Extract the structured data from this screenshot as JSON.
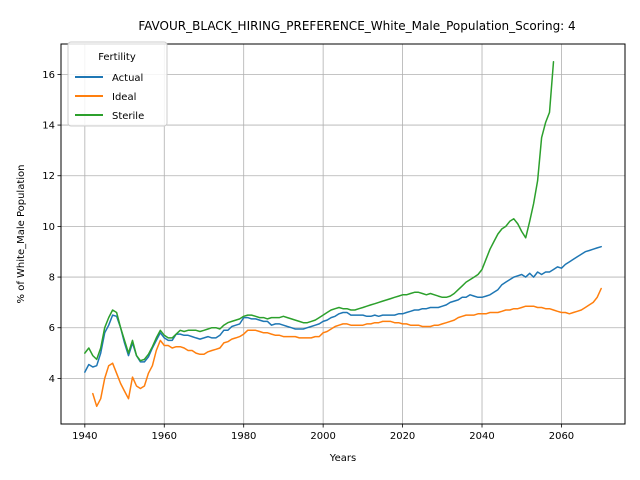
{
  "chart_data": {
    "type": "line",
    "title": "FAVOUR_BLACK_HIRING_PREFERENCE_White_Male_Population_Scoring: 4",
    "xlabel": "Years",
    "ylabel": "% of White_Male Population",
    "xlim": [
      1934,
      2076
    ],
    "ylim": [
      2.2,
      17.2
    ],
    "xticks": [
      1940,
      1960,
      1980,
      2000,
      2020,
      2040,
      2060
    ],
    "yticks": [
      4,
      6,
      8,
      10,
      12,
      14,
      16
    ],
    "grid": true,
    "legend": {
      "title": "Fertility",
      "position": "top-left"
    },
    "series": [
      {
        "name": "Actual",
        "color": "#1f77b4",
        "x": [
          1940,
          1941,
          1942,
          1943,
          1944,
          1945,
          1946,
          1947,
          1948,
          1949,
          1950,
          1951,
          1952,
          1953,
          1954,
          1955,
          1956,
          1957,
          1958,
          1959,
          1960,
          1961,
          1962,
          1963,
          1964,
          1965,
          1966,
          1967,
          1968,
          1969,
          1970,
          1971,
          1972,
          1973,
          1974,
          1975,
          1976,
          1977,
          1978,
          1979,
          1980,
          1981,
          1982,
          1983,
          1984,
          1985,
          1986,
          1987,
          1988,
          1989,
          1990,
          1991,
          1992,
          1993,
          1994,
          1995,
          1996,
          1997,
          1998,
          1999,
          2000,
          2001,
          2002,
          2003,
          2004,
          2005,
          2006,
          2007,
          2008,
          2009,
          2010,
          2011,
          2012,
          2013,
          2014,
          2015,
          2016,
          2017,
          2018,
          2019,
          2020,
          2021,
          2022,
          2023,
          2024,
          2025,
          2026,
          2027,
          2028,
          2029,
          2030,
          2031,
          2032,
          2033,
          2034,
          2035,
          2036,
          2037,
          2038,
          2039,
          2040,
          2041,
          2042,
          2043,
          2044,
          2045,
          2046,
          2047,
          2048,
          2049,
          2050,
          2051,
          2052,
          2053,
          2054,
          2055,
          2056,
          2057,
          2058,
          2059,
          2060,
          2061,
          2062,
          2063,
          2064,
          2065,
          2066,
          2067,
          2068,
          2069,
          2070
        ],
        "y": [
          4.25,
          4.55,
          4.45,
          4.5,
          5.0,
          5.8,
          6.1,
          6.5,
          6.45,
          6.0,
          5.4,
          4.9,
          5.4,
          4.9,
          4.65,
          4.65,
          4.85,
          5.2,
          5.5,
          5.8,
          5.6,
          5.5,
          5.5,
          5.75,
          5.75,
          5.7,
          5.7,
          5.65,
          5.6,
          5.55,
          5.6,
          5.65,
          5.6,
          5.6,
          5.7,
          5.9,
          5.9,
          6.05,
          6.1,
          6.15,
          6.4,
          6.4,
          6.35,
          6.35,
          6.3,
          6.25,
          6.25,
          6.1,
          6.15,
          6.15,
          6.1,
          6.05,
          6.0,
          5.95,
          5.95,
          5.95,
          6.0,
          6.05,
          6.1,
          6.15,
          6.25,
          6.3,
          6.4,
          6.45,
          6.55,
          6.6,
          6.6,
          6.5,
          6.5,
          6.5,
          6.5,
          6.45,
          6.45,
          6.5,
          6.45,
          6.5,
          6.5,
          6.5,
          6.5,
          6.55,
          6.55,
          6.6,
          6.65,
          6.7,
          6.7,
          6.75,
          6.75,
          6.8,
          6.8,
          6.8,
          6.85,
          6.9,
          7.0,
          7.05,
          7.1,
          7.2,
          7.2,
          7.3,
          7.25,
          7.2,
          7.2,
          7.25,
          7.3,
          7.4,
          7.5,
          7.7,
          7.8,
          7.9,
          8.0,
          8.05,
          8.1,
          8.0,
          8.15,
          8.0,
          8.2,
          8.1,
          8.2,
          8.2,
          8.3,
          8.4,
          8.35,
          8.5,
          8.6,
          8.7,
          8.8,
          8.9,
          9.0,
          9.05,
          9.1,
          9.15,
          9.2
        ]
      },
      {
        "name": "Ideal",
        "color": "#ff7f0e",
        "x": [
          1942,
          1943,
          1944,
          1945,
          1946,
          1947,
          1948,
          1949,
          1950,
          1951,
          1952,
          1953,
          1954,
          1955,
          1956,
          1957,
          1958,
          1959,
          1960,
          1961,
          1962,
          1963,
          1964,
          1965,
          1966,
          1967,
          1968,
          1969,
          1970,
          1971,
          1972,
          1973,
          1974,
          1975,
          1976,
          1977,
          1978,
          1979,
          1980,
          1981,
          1982,
          1983,
          1984,
          1985,
          1986,
          1987,
          1988,
          1989,
          1990,
          1991,
          1992,
          1993,
          1994,
          1995,
          1996,
          1997,
          1998,
          1999,
          2000,
          2001,
          2002,
          2003,
          2004,
          2005,
          2006,
          2007,
          2008,
          2009,
          2010,
          2011,
          2012,
          2013,
          2014,
          2015,
          2016,
          2017,
          2018,
          2019,
          2020,
          2021,
          2022,
          2023,
          2024,
          2025,
          2026,
          2027,
          2028,
          2029,
          2030,
          2031,
          2032,
          2033,
          2034,
          2035,
          2036,
          2037,
          2038,
          2039,
          2040,
          2041,
          2042,
          2043,
          2044,
          2045,
          2046,
          2047,
          2048,
          2049,
          2050,
          2051,
          2052,
          2053,
          2054,
          2055,
          2056,
          2057,
          2058,
          2059,
          2060,
          2061,
          2062,
          2063,
          2064,
          2065,
          2066,
          2067,
          2068,
          2069,
          2070
        ],
        "y": [
          3.4,
          2.9,
          3.2,
          4.0,
          4.5,
          4.6,
          4.2,
          3.8,
          3.5,
          3.2,
          4.05,
          3.7,
          3.6,
          3.7,
          4.2,
          4.5,
          5.1,
          5.5,
          5.3,
          5.3,
          5.2,
          5.25,
          5.25,
          5.2,
          5.1,
          5.1,
          5.0,
          4.95,
          4.95,
          5.05,
          5.1,
          5.15,
          5.2,
          5.4,
          5.45,
          5.55,
          5.6,
          5.65,
          5.75,
          5.9,
          5.9,
          5.9,
          5.85,
          5.8,
          5.8,
          5.75,
          5.7,
          5.7,
          5.65,
          5.65,
          5.65,
          5.65,
          5.6,
          5.6,
          5.6,
          5.6,
          5.65,
          5.65,
          5.8,
          5.85,
          5.95,
          6.05,
          6.1,
          6.15,
          6.15,
          6.1,
          6.1,
          6.1,
          6.1,
          6.15,
          6.15,
          6.2,
          6.2,
          6.25,
          6.25,
          6.25,
          6.2,
          6.2,
          6.15,
          6.15,
          6.1,
          6.1,
          6.1,
          6.05,
          6.05,
          6.05,
          6.1,
          6.1,
          6.15,
          6.2,
          6.25,
          6.3,
          6.4,
          6.45,
          6.5,
          6.5,
          6.5,
          6.55,
          6.55,
          6.55,
          6.6,
          6.6,
          6.6,
          6.65,
          6.7,
          6.7,
          6.75,
          6.75,
          6.8,
          6.85,
          6.85,
          6.85,
          6.8,
          6.8,
          6.75,
          6.75,
          6.7,
          6.65,
          6.6,
          6.6,
          6.55,
          6.6,
          6.65,
          6.7,
          6.8,
          6.9,
          7.0,
          7.2,
          7.55
        ]
      },
      {
        "name": "Sterile",
        "color": "#2ca02c",
        "x": [
          1940,
          1941,
          1942,
          1943,
          1944,
          1945,
          1946,
          1947,
          1948,
          1949,
          1950,
          1951,
          1952,
          1953,
          1954,
          1955,
          1956,
          1957,
          1958,
          1959,
          1960,
          1961,
          1962,
          1963,
          1964,
          1965,
          1966,
          1967,
          1968,
          1969,
          1970,
          1971,
          1972,
          1973,
          1974,
          1975,
          1976,
          1977,
          1978,
          1979,
          1980,
          1981,
          1982,
          1983,
          1984,
          1985,
          1986,
          1987,
          1988,
          1989,
          1990,
          1991,
          1992,
          1993,
          1994,
          1995,
          1996,
          1997,
          1998,
          1999,
          2000,
          2001,
          2002,
          2003,
          2004,
          2005,
          2006,
          2007,
          2008,
          2009,
          2010,
          2011,
          2012,
          2013,
          2014,
          2015,
          2016,
          2017,
          2018,
          2019,
          2020,
          2021,
          2022,
          2023,
          2024,
          2025,
          2026,
          2027,
          2028,
          2029,
          2030,
          2031,
          2032,
          2033,
          2034,
          2035,
          2036,
          2037,
          2038,
          2039,
          2040,
          2041,
          2042,
          2043,
          2044,
          2045,
          2046,
          2047,
          2048,
          2049,
          2050,
          2051,
          2052,
          2053,
          2054,
          2055,
          2056,
          2057,
          2058
        ],
        "y": [
          5.0,
          5.2,
          4.9,
          4.75,
          5.2,
          6.0,
          6.4,
          6.7,
          6.6,
          6.0,
          5.5,
          5.0,
          5.5,
          4.9,
          4.7,
          4.75,
          4.95,
          5.25,
          5.6,
          5.9,
          5.7,
          5.6,
          5.6,
          5.75,
          5.9,
          5.85,
          5.9,
          5.9,
          5.9,
          5.85,
          5.9,
          5.95,
          6.0,
          6.0,
          5.95,
          6.1,
          6.2,
          6.25,
          6.3,
          6.35,
          6.45,
          6.5,
          6.5,
          6.45,
          6.4,
          6.4,
          6.35,
          6.4,
          6.4,
          6.4,
          6.45,
          6.4,
          6.35,
          6.3,
          6.25,
          6.2,
          6.2,
          6.25,
          6.3,
          6.4,
          6.5,
          6.6,
          6.7,
          6.75,
          6.8,
          6.75,
          6.75,
          6.7,
          6.7,
          6.75,
          6.8,
          6.85,
          6.9,
          6.95,
          7.0,
          7.05,
          7.1,
          7.15,
          7.2,
          7.25,
          7.3,
          7.3,
          7.35,
          7.4,
          7.4,
          7.35,
          7.3,
          7.35,
          7.3,
          7.25,
          7.2,
          7.2,
          7.25,
          7.35,
          7.5,
          7.65,
          7.8,
          7.9,
          8.0,
          8.1,
          8.3,
          8.7,
          9.1,
          9.4,
          9.7,
          9.9,
          10.0,
          10.2,
          10.3,
          10.1,
          9.8,
          9.55,
          10.2,
          10.9,
          11.8,
          13.5,
          14.1,
          14.5,
          16.5
        ]
      }
    ]
  }
}
